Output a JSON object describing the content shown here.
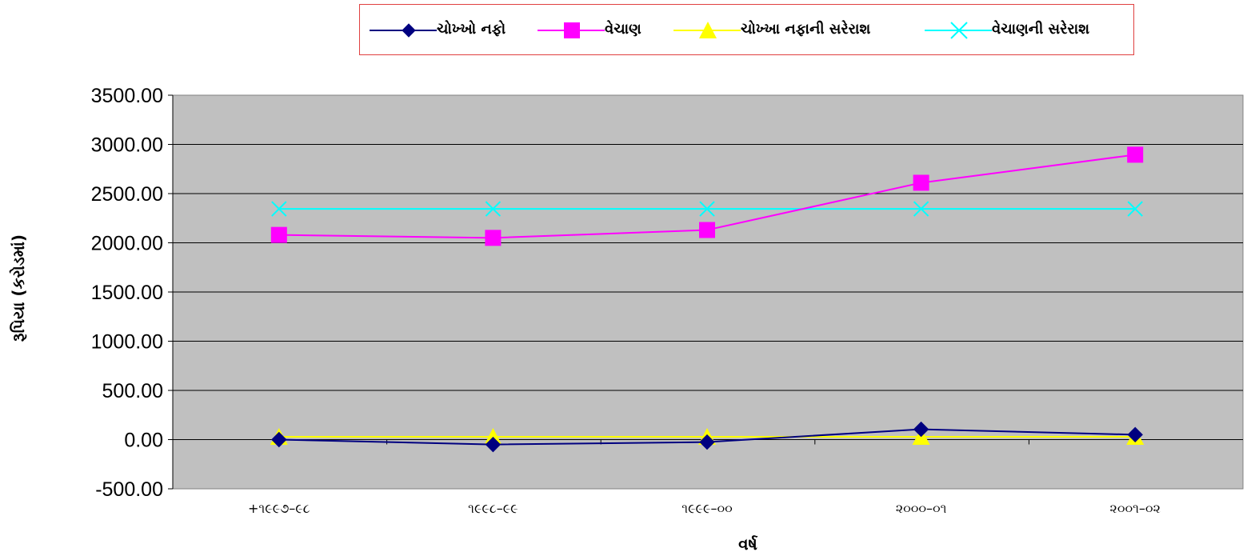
{
  "chart_data": {
    "type": "line",
    "title": "",
    "xlabel": "વર્ષ",
    "ylabel": "રૂપિયા (કરોડમાં)",
    "categories": [
      "+૧૯૯૭–૯૮",
      "૧૯૯૮–૯૯",
      "૧૯૯૯–૦૦",
      "૨૦૦૦–૦૧",
      "૨૦૦૧–૦૨"
    ],
    "ylim": [
      -500,
      3500
    ],
    "yticks": [
      -500,
      0,
      500,
      1000,
      1500,
      2000,
      2500,
      3000,
      3500
    ],
    "ytick_labels": [
      "-500.00",
      "0.00",
      "500.00",
      "1000.00",
      "1500.00",
      "2000.00",
      "2500.00",
      "3000.00",
      "3500.00"
    ],
    "grid": true,
    "legend_position": "top",
    "plot_background": "#c0c0c0",
    "series": [
      {
        "name": "ચોખ્ખો નફો",
        "color": "#000080",
        "marker": "diamond",
        "values": [
          0,
          -50,
          -25,
          105,
          50
        ]
      },
      {
        "name": "વેચાણ",
        "color": "#ff00ff",
        "marker": "square",
        "values": [
          2080,
          2050,
          2130,
          2610,
          2895
        ]
      },
      {
        "name": "ચોખ્ખા નફાની સરેરાશ",
        "color": "#ffff00",
        "marker": "triangle",
        "values": [
          28,
          28,
          28,
          28,
          28
        ]
      },
      {
        "name": "વેચાણની સરેરાશ",
        "color": "#00ffff",
        "marker": "x",
        "values": [
          2345,
          2345,
          2345,
          2345,
          2345
        ]
      }
    ]
  }
}
